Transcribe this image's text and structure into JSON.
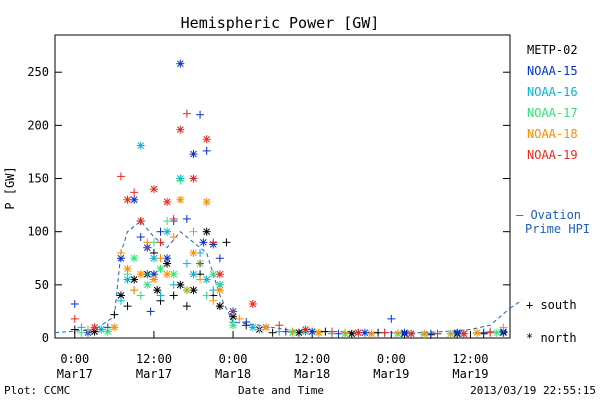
{
  "chart_data": {
    "type": "scatter",
    "title": "Hemispheric Power [GW]",
    "xlabel": "Date and Time",
    "ylabel": "P [GW]",
    "ylim": [
      0,
      285
    ],
    "xlim_hours": [
      -3,
      66
    ],
    "y_ticks": [
      0,
      50,
      100,
      150,
      200,
      250
    ],
    "x_ticks": [
      {
        "hour": 0,
        "time": "0:00",
        "date": "Mar17"
      },
      {
        "hour": 12,
        "time": "12:00",
        "date": "Mar17"
      },
      {
        "hour": 24,
        "time": "0:00",
        "date": "Mar18"
      },
      {
        "hour": 36,
        "time": "12:00",
        "date": "Mar18"
      },
      {
        "hour": 48,
        "time": "0:00",
        "date": "Mar19"
      },
      {
        "hour": 60,
        "time": "12:00",
        "date": "Mar19"
      }
    ],
    "grid": false,
    "legend_position": "right",
    "series": [
      {
        "name": "METP-02",
        "color": "#000000",
        "points": [
          [
            0,
            8
          ],
          [
            3,
            6
          ],
          [
            6,
            22
          ],
          [
            7,
            40
          ],
          [
            8,
            30
          ],
          [
            9,
            55
          ],
          [
            10,
            110
          ],
          [
            11,
            60
          ],
          [
            12,
            80
          ],
          [
            12.5,
            45
          ],
          [
            13,
            35
          ],
          [
            14,
            70
          ],
          [
            15,
            40
          ],
          [
            16,
            50
          ],
          [
            17,
            30
          ],
          [
            18,
            45
          ],
          [
            19,
            60
          ],
          [
            20,
            100
          ],
          [
            21,
            40
          ],
          [
            22,
            30
          ],
          [
            23,
            90
          ],
          [
            24,
            20
          ],
          [
            26,
            12
          ],
          [
            28,
            8
          ],
          [
            30,
            5
          ],
          [
            34,
            5
          ],
          [
            38,
            6
          ],
          [
            42,
            4
          ],
          [
            46,
            5
          ],
          [
            50,
            4
          ],
          [
            54,
            3
          ],
          [
            58,
            4
          ],
          [
            62,
            4
          ],
          [
            65,
            5
          ]
        ]
      },
      {
        "name": "NOAA-15",
        "color": "#0033cc",
        "points": [
          [
            0,
            32
          ],
          [
            2,
            5
          ],
          [
            5,
            10
          ],
          [
            7,
            75
          ],
          [
            8,
            55
          ],
          [
            9,
            130
          ],
          [
            10,
            95
          ],
          [
            11,
            85
          ],
          [
            11.5,
            25
          ],
          [
            12,
            60
          ],
          [
            13,
            100
          ],
          [
            14,
            75
          ],
          [
            15,
            110
          ],
          [
            16,
            258
          ],
          [
            17,
            112
          ],
          [
            18,
            173
          ],
          [
            19,
            210
          ],
          [
            19.5,
            90
          ],
          [
            20,
            176
          ],
          [
            21,
            88
          ],
          [
            22,
            75
          ],
          [
            24,
            25
          ],
          [
            26,
            15
          ],
          [
            29,
            10
          ],
          [
            32,
            6
          ],
          [
            36,
            6
          ],
          [
            40,
            4
          ],
          [
            44,
            5
          ],
          [
            48,
            18
          ],
          [
            50,
            5
          ],
          [
            54,
            4
          ],
          [
            58,
            5
          ],
          [
            62,
            5
          ],
          [
            65,
            6
          ]
        ]
      },
      {
        "name": "NOAA-16",
        "color": "#00b5d6",
        "points": [
          [
            1,
            10
          ],
          [
            4,
            8
          ],
          [
            7,
            35
          ],
          [
            8,
            55
          ],
          [
            9,
            45
          ],
          [
            10,
            181
          ],
          [
            11,
            60
          ],
          [
            12,
            75
          ],
          [
            13,
            40
          ],
          [
            14,
            100
          ],
          [
            15,
            50
          ],
          [
            16,
            150
          ],
          [
            17,
            70
          ],
          [
            18,
            60
          ],
          [
            19,
            80
          ],
          [
            20,
            55
          ],
          [
            21,
            45
          ],
          [
            22,
            50
          ],
          [
            24,
            15
          ],
          [
            27,
            10
          ],
          [
            31,
            6
          ],
          [
            35,
            6
          ],
          [
            39,
            4
          ],
          [
            43,
            5
          ],
          [
            47,
            5
          ],
          [
            51,
            4
          ],
          [
            55,
            4
          ],
          [
            59,
            4
          ],
          [
            63,
            6
          ]
        ]
      },
      {
        "name": "NOAA-17",
        "color": "#33e07a",
        "points": [
          [
            1,
            5
          ],
          [
            5,
            6
          ],
          [
            8,
            60
          ],
          [
            9,
            75
          ],
          [
            10,
            40
          ],
          [
            11,
            50
          ],
          [
            12,
            90
          ],
          [
            13,
            65
          ],
          [
            14,
            110
          ],
          [
            15,
            60
          ],
          [
            16,
            148
          ],
          [
            17,
            45
          ],
          [
            18,
            100
          ],
          [
            19,
            70
          ],
          [
            20,
            40
          ],
          [
            21,
            60
          ],
          [
            22,
            50
          ],
          [
            24,
            12
          ],
          [
            28,
            8
          ],
          [
            33,
            5
          ],
          [
            37,
            5
          ],
          [
            41,
            4
          ],
          [
            45,
            4
          ],
          [
            49,
            4
          ],
          [
            53,
            3
          ],
          [
            57,
            4
          ],
          [
            61,
            4
          ],
          [
            64,
            5
          ]
        ]
      },
      {
        "name": "NOAA-18",
        "color": "#ff8c00",
        "points": [
          [
            2,
            8
          ],
          [
            6,
            10
          ],
          [
            7,
            80
          ],
          [
            8,
            65
          ],
          [
            9,
            45
          ],
          [
            10,
            60
          ],
          [
            11,
            90
          ],
          [
            12,
            55
          ],
          [
            13,
            75
          ],
          [
            14,
            60
          ],
          [
            15,
            95
          ],
          [
            16,
            130
          ],
          [
            17,
            45
          ],
          [
            18,
            80
          ],
          [
            19,
            55
          ],
          [
            20,
            128
          ],
          [
            21,
            35
          ],
          [
            22,
            45
          ],
          [
            25,
            18
          ],
          [
            29,
            10
          ],
          [
            33,
            6
          ],
          [
            37,
            5
          ],
          [
            41,
            5
          ],
          [
            45,
            4
          ],
          [
            49,
            5
          ],
          [
            53,
            4
          ],
          [
            57,
            4
          ],
          [
            61,
            5
          ],
          [
            65,
            10
          ]
        ]
      },
      {
        "name": "NOAA-19",
        "color": "#e8281e",
        "points": [
          [
            0,
            18
          ],
          [
            3,
            10
          ],
          [
            7,
            152
          ],
          [
            8,
            130
          ],
          [
            9,
            137
          ],
          [
            10,
            110
          ],
          [
            11,
            85
          ],
          [
            12,
            140
          ],
          [
            13,
            90
          ],
          [
            14,
            128
          ],
          [
            15,
            112
          ],
          [
            16,
            196
          ],
          [
            17,
            211
          ],
          [
            18,
            150
          ],
          [
            19,
            70
          ],
          [
            20,
            187
          ],
          [
            21,
            90
          ],
          [
            22,
            60
          ],
          [
            24,
            25
          ],
          [
            27,
            32
          ],
          [
            31,
            12
          ],
          [
            35,
            8
          ],
          [
            39,
            6
          ],
          [
            43,
            5
          ],
          [
            47,
            5
          ],
          [
            51,
            4
          ],
          [
            55,
            4
          ],
          [
            59,
            4
          ],
          [
            63,
            5
          ]
        ]
      }
    ],
    "ovation_series": {
      "name": "Ovation Prime HPI",
      "color": "#1f5fbf",
      "points": [
        [
          -3,
          5
        ],
        [
          3,
          8
        ],
        [
          6,
          20
        ],
        [
          7,
          80
        ],
        [
          8,
          100
        ],
        [
          10,
          110
        ],
        [
          12,
          95
        ],
        [
          14,
          85
        ],
        [
          16,
          100
        ],
        [
          18,
          90
        ],
        [
          20,
          80
        ],
        [
          22,
          40
        ],
        [
          24,
          15
        ],
        [
          28,
          12
        ],
        [
          32,
          8
        ],
        [
          36,
          6
        ],
        [
          40,
          6
        ],
        [
          44,
          5
        ],
        [
          48,
          5
        ],
        [
          52,
          5
        ],
        [
          56,
          6
        ],
        [
          60,
          8
        ],
        [
          63,
          12
        ],
        [
          66,
          28
        ]
      ]
    }
  },
  "legend": {
    "items": [
      {
        "label": "METP-02",
        "color": "#000000"
      },
      {
        "label": "NOAA-15",
        "color": "#0033cc"
      },
      {
        "label": "NOAA-16",
        "color": "#00b5d6"
      },
      {
        "label": "NOAA-17",
        "color": "#33e07a"
      },
      {
        "label": "NOAA-18",
        "color": "#ff8c00"
      },
      {
        "label": "NOAA-19",
        "color": "#e8281e"
      }
    ],
    "ovation_line1": "– Ovation",
    "ovation_line2": "Prime HPI",
    "south_label": "+ south",
    "north_label": "* north"
  },
  "footer": {
    "left": "Plot: CCMC",
    "center": "Date and Time",
    "right": "2013/03/19 22:55:15"
  }
}
